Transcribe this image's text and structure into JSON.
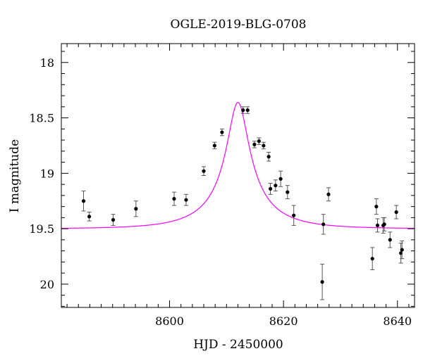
{
  "chart_data": {
    "type": "scatter",
    "title": "OGLE-2019-BLG-0708",
    "xlabel": "HJD - 2450000",
    "ylabel": "I magnitude",
    "xlim": [
      8581,
      8643
    ],
    "ylim": [
      20.21,
      17.83
    ],
    "y_inverted": true,
    "x_ticks": [
      8600,
      8620,
      8640
    ],
    "y_ticks": [
      18,
      18.5,
      19,
      19.5,
      20
    ],
    "y_tick_labels": [
      "18",
      "18.5",
      "19",
      "19.5",
      "20"
    ],
    "grid": false,
    "marker_color": "#000000",
    "model_color": "#ff00ff",
    "model": {
      "type": "microlensing-paczynski",
      "t0": 8612.0,
      "u0": 0.2,
      "tE": 10.0,
      "baseline_mag": 19.5,
      "peak_mag": 18.36
    },
    "series": [
      {
        "type": "points-with-errorbars",
        "points": [
          {
            "x": 8584.9,
            "y": 19.25,
            "err": 0.09
          },
          {
            "x": 8585.9,
            "y": 19.39,
            "err": 0.04
          },
          {
            "x": 8590.1,
            "y": 19.42,
            "err": 0.05
          },
          {
            "x": 8594.1,
            "y": 19.32,
            "err": 0.07
          },
          {
            "x": 8600.8,
            "y": 19.23,
            "err": 0.06
          },
          {
            "x": 8602.9,
            "y": 19.24,
            "err": 0.05
          },
          {
            "x": 8606.0,
            "y": 18.98,
            "err": 0.04
          },
          {
            "x": 8607.9,
            "y": 18.75,
            "err": 0.03
          },
          {
            "x": 8609.2,
            "y": 18.63,
            "err": 0.03
          },
          {
            "x": 8612.9,
            "y": 18.43,
            "err": 0.03
          },
          {
            "x": 8613.7,
            "y": 18.43,
            "err": 0.03
          },
          {
            "x": 8614.9,
            "y": 18.74,
            "err": 0.03
          },
          {
            "x": 8615.7,
            "y": 18.71,
            "err": 0.03
          },
          {
            "x": 8616.5,
            "y": 18.75,
            "err": 0.03
          },
          {
            "x": 8617.4,
            "y": 18.85,
            "err": 0.04
          },
          {
            "x": 8617.7,
            "y": 19.14,
            "err": 0.05
          },
          {
            "x": 8618.6,
            "y": 19.11,
            "err": 0.05
          },
          {
            "x": 8619.5,
            "y": 19.05,
            "err": 0.07
          },
          {
            "x": 8620.7,
            "y": 19.17,
            "err": 0.06
          },
          {
            "x": 8621.8,
            "y": 19.38,
            "err": 0.09
          },
          {
            "x": 8626.8,
            "y": 19.98,
            "err": 0.16
          },
          {
            "x": 8627.0,
            "y": 19.46,
            "err": 0.09
          },
          {
            "x": 8627.9,
            "y": 19.19,
            "err": 0.06
          },
          {
            "x": 8635.6,
            "y": 19.77,
            "err": 0.1
          },
          {
            "x": 8636.3,
            "y": 19.3,
            "err": 0.07
          },
          {
            "x": 8636.5,
            "y": 19.47,
            "err": 0.06
          },
          {
            "x": 8637.5,
            "y": 19.47,
            "err": 0.07
          },
          {
            "x": 8637.7,
            "y": 19.46,
            "err": 0.06
          },
          {
            "x": 8638.7,
            "y": 19.6,
            "err": 0.07
          },
          {
            "x": 8639.8,
            "y": 19.35,
            "err": 0.06
          },
          {
            "x": 8640.6,
            "y": 19.72,
            "err": 0.09
          },
          {
            "x": 8640.8,
            "y": 19.69,
            "err": 0.08
          }
        ]
      }
    ]
  }
}
